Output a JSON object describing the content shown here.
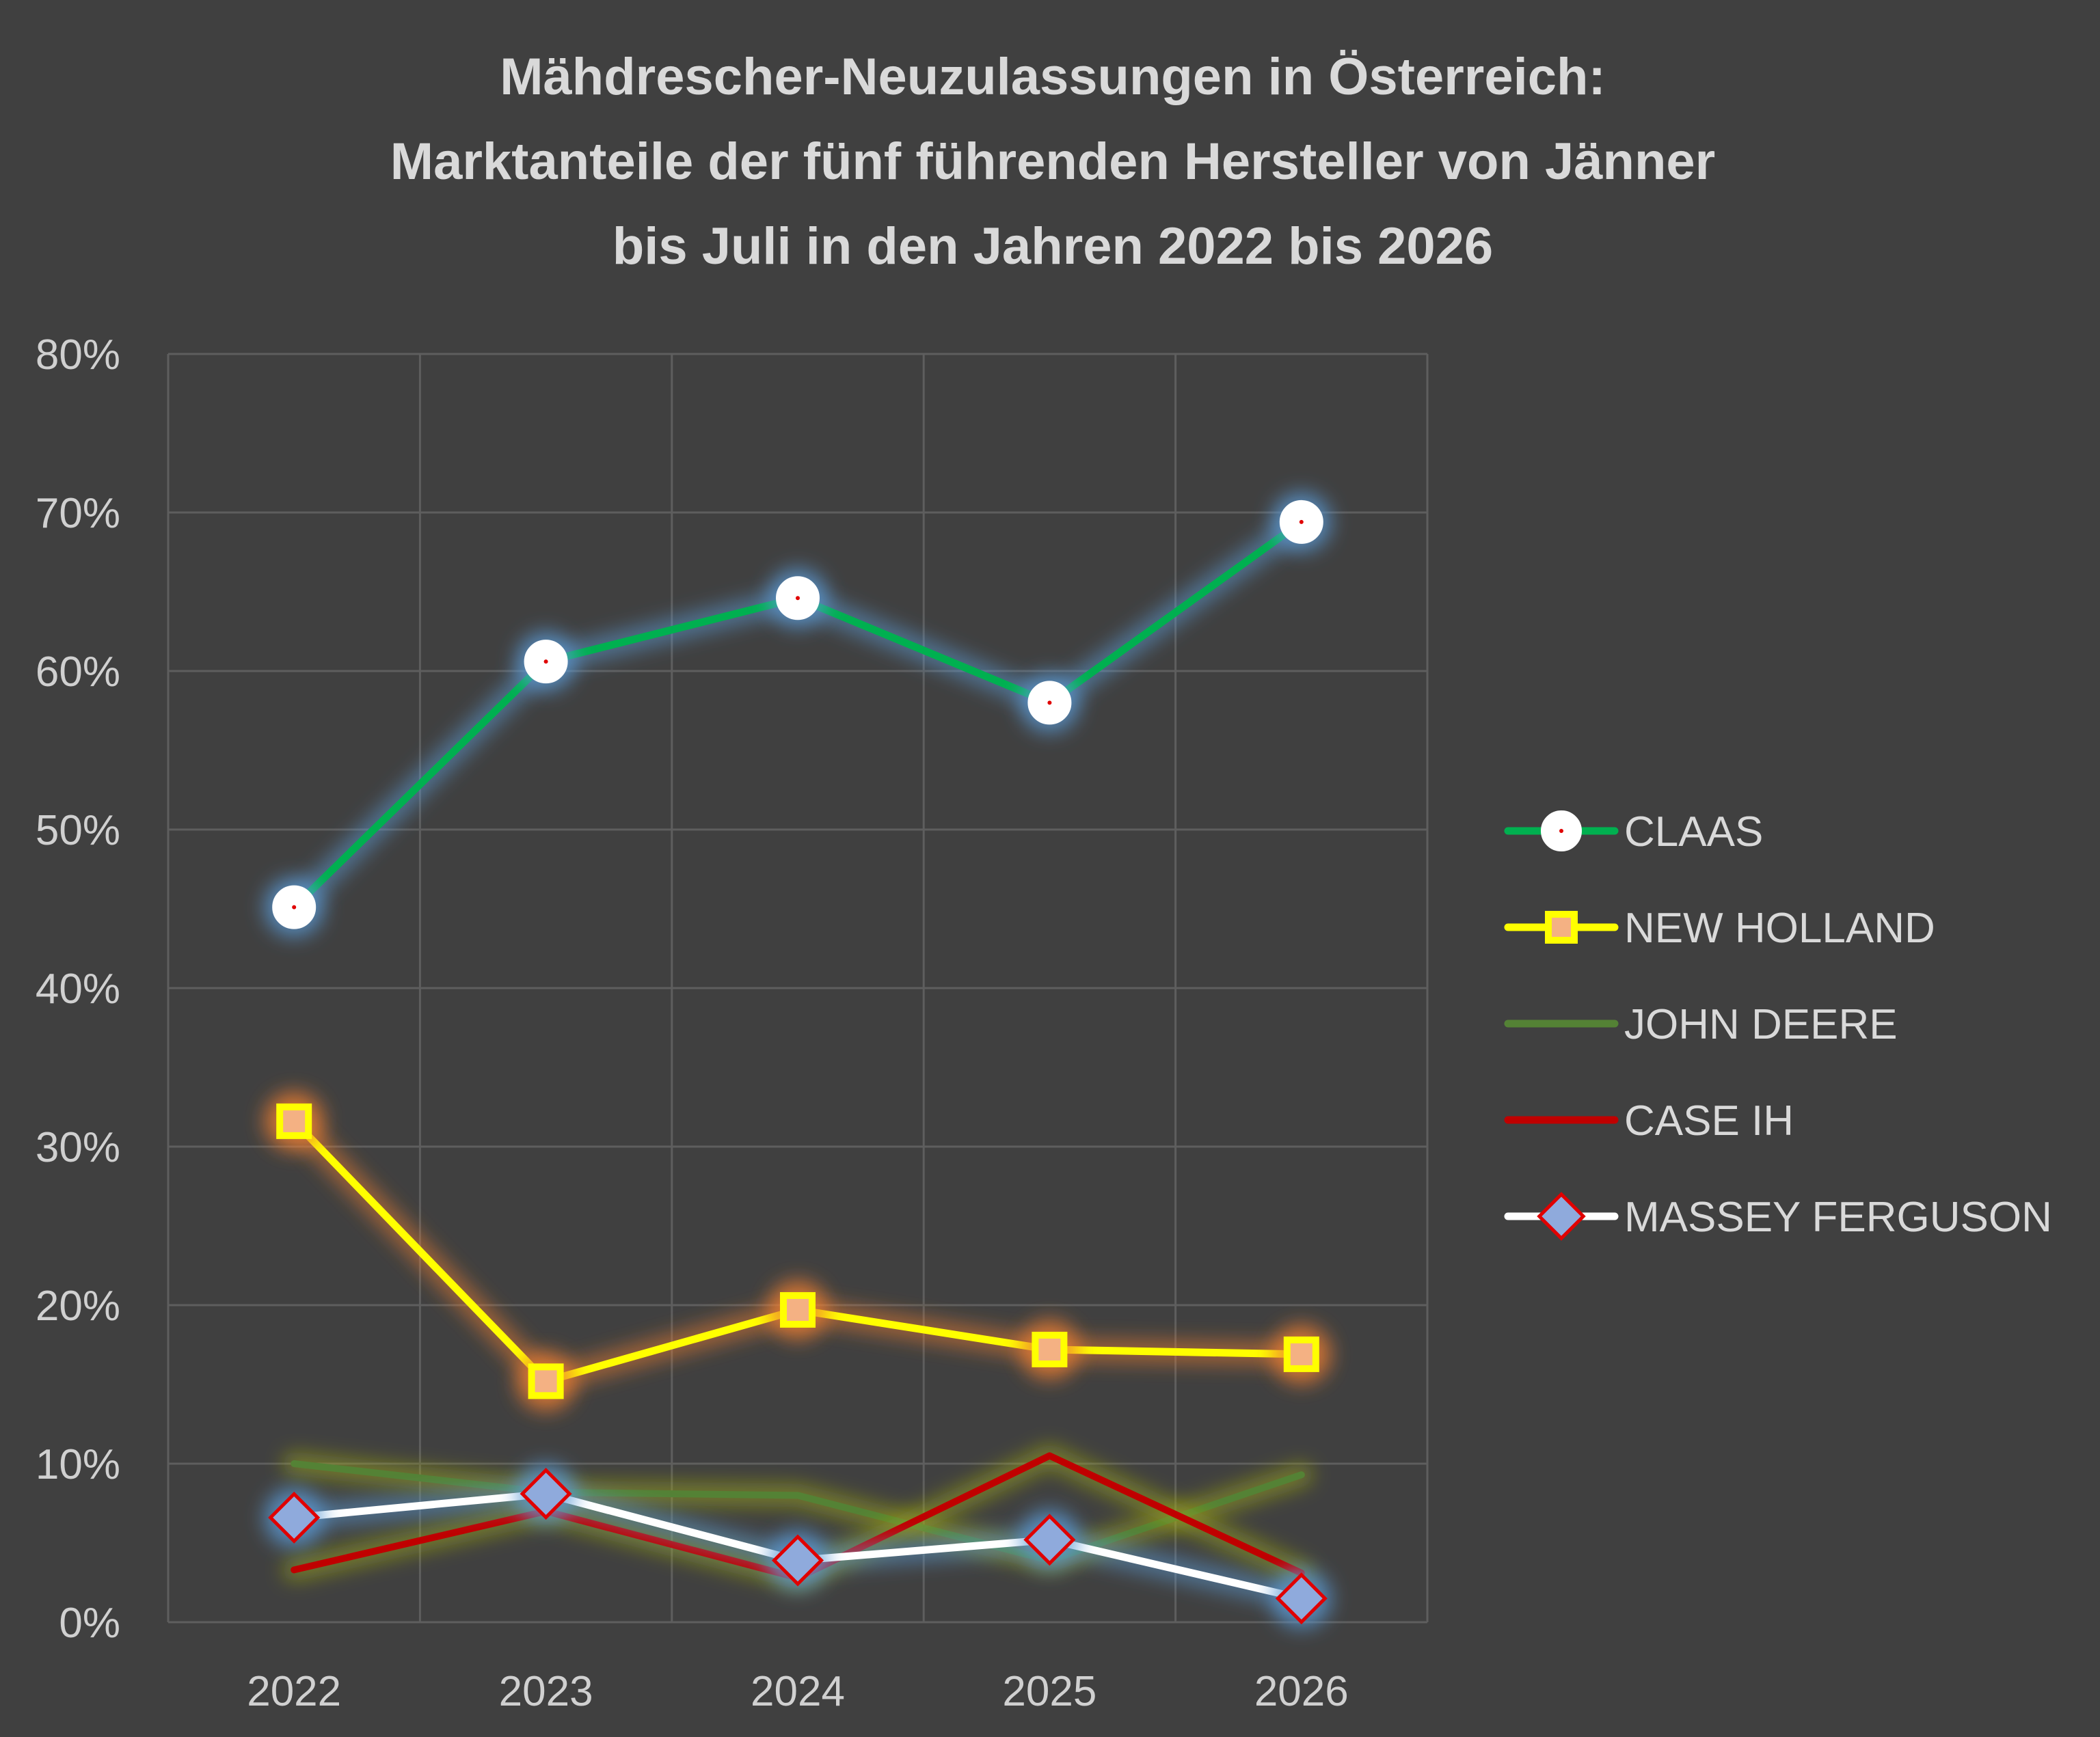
{
  "chart_data": {
    "type": "line",
    "title_lines": [
      "Mähdrescher-Neuzulassungen in Österreich:",
      "Marktanteile der fünf führenden Hersteller von Jänner",
      "bis Juli in den Jahren 2022 bis 2026"
    ],
    "xlabel": "",
    "ylabel": "",
    "categories": [
      "2022",
      "2023",
      "2024",
      "2025",
      "2026"
    ],
    "y_ticks": [
      "0%",
      "10%",
      "20%",
      "30%",
      "40%",
      "50%",
      "60%",
      "70%",
      "80%"
    ],
    "ylim": [
      0,
      80
    ],
    "y_unit": "%",
    "grid": true,
    "legend_position": "right",
    "series": [
      {
        "name": "CLAAS",
        "values": [
          45.1,
          60.6,
          64.6,
          58.0,
          69.4
        ],
        "color": "#00b050",
        "marker": "circle",
        "marker_fill": "#ffffff",
        "glow": "#5b9bd5"
      },
      {
        "name": "NEW HOLLAND",
        "values": [
          31.6,
          15.2,
          19.7,
          17.2,
          16.9
        ],
        "color": "#ffff00",
        "marker": "square",
        "marker_fill": "#f4b183",
        "glow": "#ed7d31"
      },
      {
        "name": "JOHN DEERE",
        "values": [
          10.0,
          8.2,
          8.0,
          3.9,
          9.3
        ],
        "color": "#548235",
        "marker": "none",
        "glow": "#9fa818"
      },
      {
        "name": "CASE IH",
        "values": [
          3.3,
          7.0,
          2.8,
          10.5,
          3.1
        ],
        "color": "#c00000",
        "marker": "none",
        "glow": "#9fa818"
      },
      {
        "name": "MASSEY FERGUSON",
        "values": [
          6.6,
          8.1,
          3.9,
          5.2,
          1.5
        ],
        "color": "#ffffff",
        "marker": "diamond",
        "marker_fill": "#8faadc",
        "marker_stroke": "#e00000",
        "glow": "#5b9bd5"
      }
    ]
  }
}
